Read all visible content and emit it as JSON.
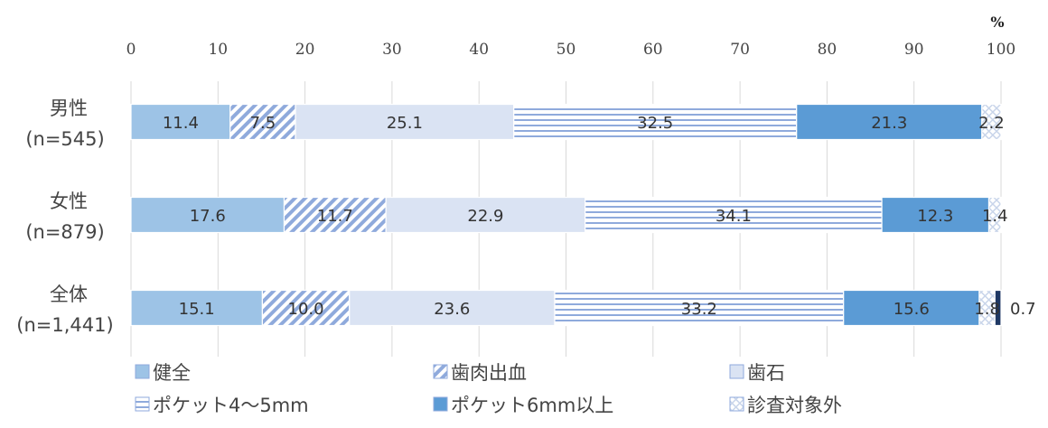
{
  "chart_data": {
    "type": "bar",
    "orientation": "horizontal",
    "stacked": true,
    "unit_label": "%",
    "xlim": [
      0,
      100
    ],
    "x_ticks": [
      0,
      10,
      20,
      30,
      40,
      50,
      60,
      70,
      80,
      90,
      100
    ],
    "grid": true,
    "legend_position": "bottom",
    "categories": [
      {
        "name": "男性",
        "n": "(n=545)"
      },
      {
        "name": "女性",
        "n": "(n=879)"
      },
      {
        "name": "全体",
        "n": "(n=1,441)"
      }
    ],
    "series": [
      {
        "name": "健全",
        "values": [
          11.4,
          17.6,
          15.1
        ],
        "labels": [
          "11.4",
          "17.6",
          "15.1"
        ],
        "color": "#9dc3e6",
        "pattern": "solid"
      },
      {
        "name": "歯肉出血",
        "values": [
          7.5,
          11.7,
          10.0
        ],
        "labels": [
          "7.5",
          "11.7",
          "10.0"
        ],
        "color": "#8faadc",
        "pattern": "diagonal"
      },
      {
        "name": "歯石",
        "values": [
          25.1,
          22.9,
          23.6
        ],
        "labels": [
          "25.1",
          "22.9",
          "23.6"
        ],
        "color": "#dae3f3",
        "pattern": "solid"
      },
      {
        "name": "ポケット4〜5mm",
        "values": [
          32.5,
          34.1,
          33.2
        ],
        "labels": [
          "32.5",
          "34.1",
          "33.2"
        ],
        "color": "#8faadc",
        "pattern": "horizontal"
      },
      {
        "name": "ポケット6mm以上",
        "values": [
          21.3,
          12.3,
          15.6
        ],
        "labels": [
          "21.3",
          "12.3",
          "15.6"
        ],
        "color": "#5b9bd5",
        "pattern": "solid"
      },
      {
        "name": "診査対象外",
        "values": [
          2.2,
          1.4,
          1.8
        ],
        "labels": [
          "2.2",
          "1.4",
          "1.8"
        ],
        "color": "#c9d5ea",
        "pattern": "crosshatch"
      },
      {
        "name": "",
        "values": [
          0,
          0,
          0.7
        ],
        "labels": [
          "",
          "",
          "0.7"
        ],
        "color": "#1f3864",
        "pattern": "solid"
      }
    ]
  }
}
